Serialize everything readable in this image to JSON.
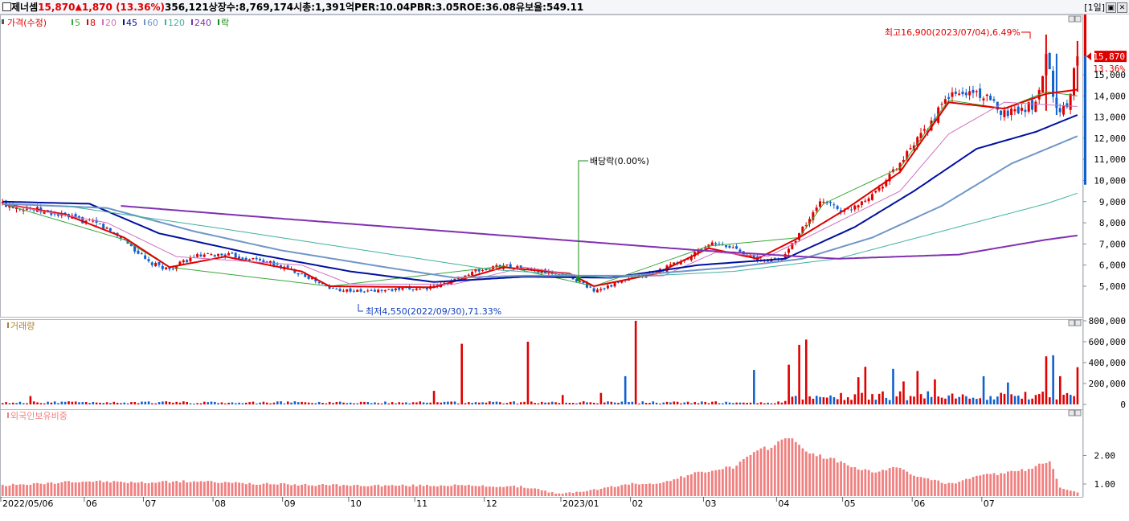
{
  "header": {
    "name": "제너셈",
    "price": "15,870",
    "change_arrow": "▲",
    "change": "1,870",
    "change_pct": "(13.36%)",
    "volume": "356,121",
    "listed_shares": "상장수:8,769,174",
    "market_cap": "시총:1,391억",
    "per": "PER:10.04",
    "pbr": "PBR:3.05",
    "roe": "ROE:36.08",
    "float_ratio": "유보율:549.11",
    "period": "[1일]",
    "btn_restore": "▣",
    "btn_close": "✕"
  },
  "colors": {
    "up": "#e00000",
    "down": "#1060d0",
    "ma5": "#3aa83a",
    "ma8": "#e00000",
    "ma20": "#d070c0",
    "ma45": "#0010a0",
    "ma60": "#6f96c8",
    "ma120": "#40b0a0",
    "ma240": "#8030b0",
    "foreign": "#f08080"
  },
  "legend": {
    "price": {
      "label": "가격(수정)",
      "items": [
        {
          "label": "5",
          "color": "#3aa83a"
        },
        {
          "label": "8",
          "color": "#e00000"
        },
        {
          "label": "20",
          "color": "#d070c0"
        },
        {
          "label": "45",
          "color": "#0010a0"
        },
        {
          "label": "60",
          "color": "#6f96c8"
        },
        {
          "label": "120",
          "color": "#40b0a0"
        },
        {
          "label": "240",
          "color": "#8030b0"
        },
        {
          "label": "락",
          "color": "#1a8a1a"
        }
      ]
    },
    "volume": "거래량",
    "foreign": "외국인보유비중"
  },
  "chart_data": [
    {
      "type": "candlestick",
      "title": "가격(수정)",
      "ylim": [
        4000,
        17000
      ],
      "y_ticks": [
        "5,000",
        "6,000",
        "7,000",
        "8,000",
        "9,000",
        "10,000",
        "11,000",
        "12,000",
        "13,000",
        "14,000",
        "15,000"
      ],
      "y_tick_values": [
        5000,
        6000,
        7000,
        8000,
        9000,
        10000,
        11000,
        12000,
        13000,
        14000,
        15000
      ],
      "x_labels": [
        "2022/05/06",
        "06",
        "07",
        "08",
        "09",
        "10",
        "11",
        "12",
        "2023/01",
        "02",
        "03",
        "04",
        "05",
        "06",
        "07"
      ],
      "last_price_label": "15,870",
      "last_change_label": "13.36%",
      "last_price": 15870,
      "annotations": {
        "high": "최고16,900(2023/07/04),6.49%",
        "low": "최저4,550(2022/09/30),71.33%",
        "dividend": "배당락(0.00%)"
      },
      "close_anchors": [
        [
          0,
          8900
        ],
        [
          10,
          8600
        ],
        [
          18,
          8300
        ],
        [
          28,
          7900
        ],
        [
          35,
          7200
        ],
        [
          42,
          6100
        ],
        [
          48,
          5800
        ],
        [
          55,
          6400
        ],
        [
          64,
          6500
        ],
        [
          75,
          6200
        ],
        [
          86,
          5600
        ],
        [
          94,
          4900
        ],
        [
          103,
          4750
        ],
        [
          115,
          4850
        ],
        [
          124,
          4950
        ],
        [
          130,
          5300
        ],
        [
          136,
          5700
        ],
        [
          144,
          6000
        ],
        [
          154,
          5700
        ],
        [
          163,
          5500
        ],
        [
          170,
          4800
        ],
        [
          176,
          5100
        ],
        [
          188,
          5700
        ],
        [
          197,
          6300
        ],
        [
          203,
          7000
        ],
        [
          211,
          6800
        ],
        [
          217,
          6200
        ],
        [
          224,
          6300
        ],
        [
          229,
          7500
        ],
        [
          236,
          9100
        ],
        [
          242,
          8500
        ],
        [
          251,
          9500
        ],
        [
          258,
          10800
        ],
        [
          266,
          12500
        ],
        [
          272,
          14000
        ],
        [
          280,
          14200
        ],
        [
          288,
          13200
        ],
        [
          297,
          13600
        ],
        [
          300,
          16000
        ],
        [
          303,
          13300
        ],
        [
          306,
          13500
        ],
        [
          309,
          15870
        ]
      ],
      "moving_averages": [
        {
          "name": "5",
          "color": "#3aa83a",
          "width": 1,
          "anchors": [
            [
              0,
              8900
            ],
            [
              35,
              7200
            ],
            [
              48,
              5900
            ],
            [
              94,
              5000
            ],
            [
              144,
              5950
            ],
            [
              170,
              5000
            ],
            [
              203,
              6900
            ],
            [
              229,
              7300
            ],
            [
              236,
              8900
            ],
            [
              258,
              10600
            ],
            [
              272,
              13800
            ],
            [
              288,
              13400
            ],
            [
              300,
              14200
            ],
            [
              309,
              14000
            ]
          ]
        },
        {
          "name": "8",
          "color": "#e00000",
          "width": 2,
          "anchors": [
            [
              0,
              8900
            ],
            [
              18,
              8400
            ],
            [
              35,
              7300
            ],
            [
              48,
              5900
            ],
            [
              64,
              6400
            ],
            [
              86,
              5700
            ],
            [
              94,
              5000
            ],
            [
              124,
              4950
            ],
            [
              144,
              5900
            ],
            [
              163,
              5600
            ],
            [
              170,
              5000
            ],
            [
              188,
              5600
            ],
            [
              203,
              6800
            ],
            [
              217,
              6300
            ],
            [
              229,
              7300
            ],
            [
              242,
              8600
            ],
            [
              258,
              10400
            ],
            [
              272,
              13700
            ],
            [
              288,
              13400
            ],
            [
              300,
              14100
            ],
            [
              309,
              14300
            ]
          ]
        },
        {
          "name": "20",
          "color": "#d070c0",
          "width": 1,
          "anchors": [
            [
              0,
              8900
            ],
            [
              30,
              8000
            ],
            [
              50,
              6400
            ],
            [
              86,
              6000
            ],
            [
              100,
              5100
            ],
            [
              130,
              5100
            ],
            [
              150,
              5900
            ],
            [
              170,
              5400
            ],
            [
              190,
              5500
            ],
            [
              205,
              6600
            ],
            [
              220,
              6400
            ],
            [
              236,
              7700
            ],
            [
              258,
              9500
            ],
            [
              272,
              12200
            ],
            [
              288,
              13700
            ],
            [
              309,
              13500
            ]
          ]
        },
        {
          "name": "45",
          "color": "#0010a0",
          "width": 2,
          "anchors": [
            [
              0,
              9000
            ],
            [
              25,
              8900
            ],
            [
              45,
              7500
            ],
            [
              70,
              6600
            ],
            [
              100,
              5700
            ],
            [
              124,
              5200
            ],
            [
              150,
              5450
            ],
            [
              175,
              5400
            ],
            [
              200,
              6000
            ],
            [
              225,
              6300
            ],
            [
              245,
              7800
            ],
            [
              262,
              9500
            ],
            [
              280,
              11500
            ],
            [
              297,
              12300
            ],
            [
              309,
              13100
            ]
          ]
        },
        {
          "name": "60",
          "color": "#6f96c8",
          "width": 2,
          "anchors": [
            [
              0,
              8900
            ],
            [
              30,
              8700
            ],
            [
              55,
              7600
            ],
            [
              80,
              6700
            ],
            [
              110,
              5900
            ],
            [
              130,
              5400
            ],
            [
              150,
              5500
            ],
            [
              180,
              5500
            ],
            [
              210,
              5900
            ],
            [
              230,
              6300
            ],
            [
              250,
              7300
            ],
            [
              270,
              8800
            ],
            [
              290,
              10800
            ],
            [
              309,
              12100
            ]
          ]
        },
        {
          "name": "120",
          "color": "#40b0a0",
          "width": 1,
          "anchors": [
            [
              18,
              8800
            ],
            [
              60,
              7800
            ],
            [
              100,
              6800
            ],
            [
              140,
              5800
            ],
            [
              175,
              5400
            ],
            [
              210,
              5700
            ],
            [
              240,
              6300
            ],
            [
              270,
              7600
            ],
            [
              300,
              8900
            ],
            [
              309,
              9400
            ]
          ]
        },
        {
          "name": "240",
          "color": "#8030b0",
          "width": 2,
          "anchors": [
            [
              34,
              8800
            ],
            [
              80,
              8200
            ],
            [
              120,
              7700
            ],
            [
              160,
              7200
            ],
            [
              200,
              6700
            ],
            [
              240,
              6300
            ],
            [
              275,
              6500
            ],
            [
              300,
              7200
            ],
            [
              309,
              7400
            ]
          ]
        }
      ]
    },
    {
      "type": "bar",
      "title": "거래량",
      "ylim": [
        0,
        850000
      ],
      "y_ticks": [
        "0",
        "200,000",
        "400,000",
        "600,000",
        "800,000"
      ],
      "y_tick_values": [
        0,
        200000,
        400000,
        600000,
        800000
      ],
      "spikes": [
        {
          "i": 8,
          "v": 80000
        },
        {
          "i": 124,
          "v": 130000
        },
        {
          "i": 132,
          "v": 580000
        },
        {
          "i": 151,
          "v": 600000
        },
        {
          "i": 161,
          "v": 90000
        },
        {
          "i": 172,
          "v": 110000
        },
        {
          "i": 179,
          "v": 270000
        },
        {
          "i": 182,
          "v": 800000
        },
        {
          "i": 216,
          "v": 330000
        },
        {
          "i": 226,
          "v": 380000
        },
        {
          "i": 229,
          "v": 570000
        },
        {
          "i": 231,
          "v": 620000
        },
        {
          "i": 246,
          "v": 260000
        },
        {
          "i": 248,
          "v": 360000
        },
        {
          "i": 256,
          "v": 340000
        },
        {
          "i": 259,
          "v": 220000
        },
        {
          "i": 263,
          "v": 320000
        },
        {
          "i": 268,
          "v": 240000
        },
        {
          "i": 282,
          "v": 270000
        },
        {
          "i": 289,
          "v": 210000
        },
        {
          "i": 300,
          "v": 460000
        },
        {
          "i": 302,
          "v": 470000
        },
        {
          "i": 304,
          "v": 270000
        },
        {
          "i": 309,
          "v": 356121
        }
      ]
    },
    {
      "type": "bar",
      "title": "외국인보유비중",
      "ylim": [
        0.55,
        2.95
      ],
      "y_ticks": [
        "1.00",
        "2.00"
      ],
      "y_tick_values": [
        1.0,
        2.0
      ],
      "anchors": [
        [
          0,
          0.95
        ],
        [
          25,
          1.1
        ],
        [
          40,
          1.05
        ],
        [
          55,
          1.1
        ],
        [
          75,
          1.0
        ],
        [
          100,
          0.95
        ],
        [
          130,
          0.95
        ],
        [
          150,
          0.9
        ],
        [
          160,
          0.65
        ],
        [
          170,
          0.8
        ],
        [
          180,
          1.0
        ],
        [
          190,
          1.05
        ],
        [
          200,
          1.4
        ],
        [
          210,
          1.6
        ],
        [
          215,
          2.0
        ],
        [
          222,
          2.4
        ],
        [
          226,
          2.7
        ],
        [
          230,
          2.2
        ],
        [
          240,
          1.8
        ],
        [
          250,
          1.4
        ],
        [
          256,
          1.6
        ],
        [
          265,
          1.2
        ],
        [
          272,
          1.0
        ],
        [
          282,
          1.3
        ],
        [
          295,
          1.5
        ],
        [
          301,
          1.85
        ],
        [
          304,
          0.9
        ],
        [
          309,
          0.7
        ]
      ]
    }
  ]
}
